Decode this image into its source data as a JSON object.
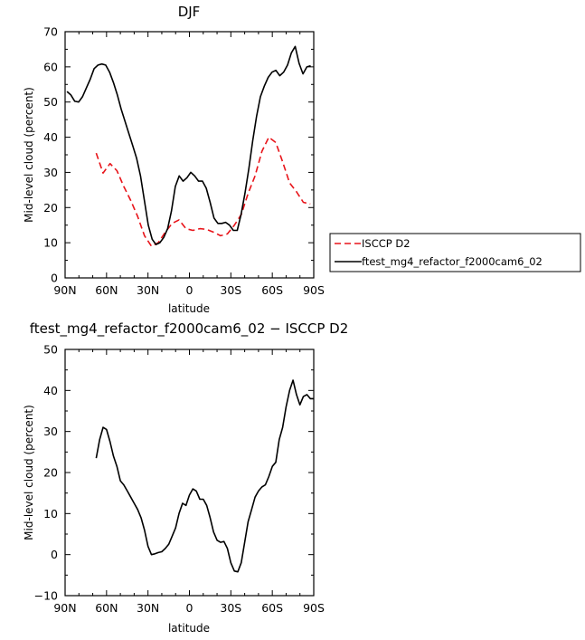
{
  "chart_data": [
    {
      "type": "line",
      "title": "DJF",
      "xlabel": "latitude",
      "ylabel": "Mid-level cloud (percent)",
      "xlim": [
        -90,
        90
      ],
      "ylim": [
        0,
        70
      ],
      "xticks": [
        -90,
        -60,
        -30,
        0,
        30,
        60,
        90
      ],
      "xtick_labels": [
        "90N",
        "60N",
        "30N",
        "0",
        "30S",
        "60S",
        "90S"
      ],
      "yticks": [
        0,
        10,
        20,
        30,
        40,
        50,
        60,
        70
      ],
      "ytick_labels": [
        "0",
        "10",
        "20",
        "30",
        "40",
        "50",
        "60",
        "70"
      ],
      "legend": {
        "placement": "right",
        "entries": [
          "ISCCP D2",
          "ftest_mg4_refactor_f2000cam6_02"
        ]
      },
      "series": [
        {
          "name": "ISCCP D2",
          "color": "#e8141a",
          "dash": "dashed",
          "x": [
            -67.5,
            -62.5,
            -57.5,
            -52.5,
            -47.5,
            -42.5,
            -37.5,
            -32.5,
            -27.5,
            -22.5,
            -17.5,
            -12.5,
            -7.5,
            -2.5,
            2.5,
            7.5,
            12.5,
            17.5,
            22.5,
            27.5,
            32.5,
            37.5,
            42.5,
            47.5,
            52.5,
            57.5,
            62.5,
            67.5,
            72.5,
            77.5,
            82.5,
            87.5
          ],
          "values": [
            35.5,
            29.8,
            32.5,
            30.5,
            26.0,
            22.0,
            17.5,
            12.0,
            9.0,
            10.0,
            13.0,
            15.5,
            16.5,
            14.0,
            13.5,
            14.0,
            13.8,
            13.0,
            12.0,
            12.5,
            15.0,
            18.0,
            24.0,
            29.0,
            36.0,
            40.0,
            38.5,
            33.0,
            27.0,
            24.5,
            21.5,
            21.0
          ]
        },
        {
          "name": "ftest_mg4_refactor_f2000cam6_02",
          "color": "#000000",
          "dash": "solid",
          "x": [
            -88.6,
            -85.8,
            -83.0,
            -80.2,
            -77.4,
            -74.6,
            -71.8,
            -69.0,
            -66.2,
            -63.4,
            -60.6,
            -57.8,
            -55.0,
            -52.2,
            -49.4,
            -46.6,
            -43.8,
            -41.0,
            -38.2,
            -35.4,
            -32.6,
            -29.8,
            -27.0,
            -24.2,
            -21.4,
            -18.6,
            -15.8,
            -13.0,
            -10.2,
            -7.4,
            -4.6,
            -1.8,
            1.0,
            3.8,
            6.6,
            9.4,
            12.2,
            15.0,
            17.8,
            20.6,
            23.4,
            26.2,
            29.0,
            31.8,
            34.6,
            37.4,
            40.2,
            43.0,
            45.8,
            48.6,
            51.4,
            54.2,
            57.0,
            59.8,
            62.6,
            65.4,
            68.2,
            71.0,
            73.8,
            76.6,
            79.4,
            82.2,
            85.0,
            87.8
          ],
          "values": [
            53.0,
            52.0,
            50.2,
            50.0,
            51.5,
            54.0,
            56.5,
            59.5,
            60.5,
            60.8,
            60.5,
            58.5,
            55.5,
            52.0,
            48.0,
            44.5,
            41.0,
            37.5,
            34.0,
            29.0,
            22.0,
            15.0,
            11.0,
            9.5,
            10.0,
            11.5,
            14.0,
            19.0,
            26.0,
            29.0,
            27.5,
            28.5,
            30.0,
            29.0,
            27.5,
            27.5,
            25.5,
            21.5,
            17.0,
            15.5,
            15.5,
            15.8,
            15.0,
            13.5,
            13.5,
            18.0,
            24.0,
            31.0,
            39.0,
            46.0,
            51.5,
            54.5,
            57.0,
            58.5,
            59.0,
            57.5,
            58.5,
            60.5,
            64.0,
            65.8,
            61.0,
            58.0,
            60.0,
            60.3
          ]
        }
      ]
    },
    {
      "type": "line",
      "title": "ftest_mg4_refactor_f2000cam6_02 − ISCCP D2",
      "xlabel": "latitude",
      "ylabel": "Mid-level cloud (percent)",
      "xlim": [
        -90,
        90
      ],
      "ylim": [
        -10,
        50
      ],
      "xticks": [
        -90,
        -60,
        -30,
        0,
        30,
        60,
        90
      ],
      "xtick_labels": [
        "90N",
        "60N",
        "30N",
        "0",
        "30S",
        "60S",
        "90S"
      ],
      "yticks": [
        -10,
        0,
        10,
        20,
        30,
        40,
        50
      ],
      "ytick_labels": [
        "−10",
        "0",
        "10",
        "20",
        "30",
        "40",
        "50"
      ],
      "series": [
        {
          "color": "#000000",
          "dash": "solid",
          "x": [
            -67.5,
            -65.0,
            -62.5,
            -60.0,
            -57.5,
            -55.0,
            -52.5,
            -50.0,
            -47.5,
            -45.0,
            -42.5,
            -40.0,
            -37.5,
            -35.0,
            -32.5,
            -30.0,
            -27.5,
            -25.0,
            -22.5,
            -20.0,
            -17.5,
            -15.0,
            -12.5,
            -10.0,
            -7.5,
            -5.0,
            -2.5,
            0.0,
            2.5,
            5.0,
            7.5,
            10.0,
            12.5,
            15.0,
            17.5,
            20.0,
            22.5,
            25.0,
            27.5,
            30.0,
            32.5,
            35.0,
            37.5,
            40.0,
            42.5,
            45.0,
            47.5,
            50.0,
            52.5,
            55.0,
            57.5,
            60.0,
            62.5,
            65.0,
            67.5,
            70.0,
            72.5,
            75.0,
            77.5,
            80.0,
            82.5,
            85.0,
            87.5,
            90.0
          ],
          "values": [
            23.5,
            28.0,
            31.0,
            30.5,
            27.5,
            24.0,
            21.5,
            18.0,
            17.0,
            15.5,
            14.0,
            12.5,
            11.0,
            9.0,
            6.0,
            2.0,
            0.0,
            0.2,
            0.5,
            0.7,
            1.5,
            2.5,
            4.5,
            6.5,
            10.0,
            12.5,
            12.0,
            14.5,
            16.0,
            15.5,
            13.5,
            13.5,
            12.0,
            9.0,
            5.5,
            3.5,
            3.0,
            3.2,
            1.5,
            -2.0,
            -4.0,
            -4.2,
            -2.0,
            3.0,
            8.0,
            11.0,
            14.0,
            15.5,
            16.5,
            17.0,
            19.0,
            21.5,
            22.5,
            28.0,
            31.0,
            36.0,
            40.0,
            42.5,
            39.0,
            36.5,
            38.5,
            39.0,
            38.0,
            38.0
          ]
        }
      ]
    }
  ]
}
